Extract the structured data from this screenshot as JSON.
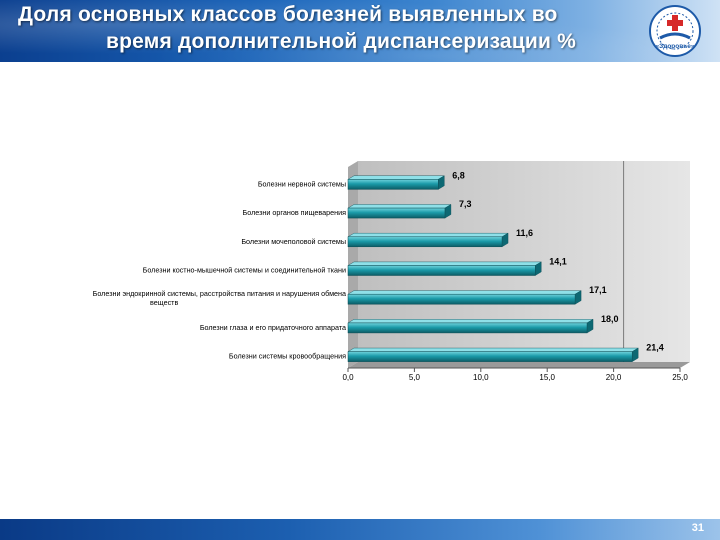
{
  "slide": {
    "title_line1": "Доля основных классов болезней выявленных во",
    "title_line2": "время дополнительной диспансеризации %",
    "page_number": "31",
    "logo_text": "«Здоровье»"
  },
  "chart_data": {
    "type": "bar",
    "orientation": "horizontal",
    "style": "3d",
    "categories": [
      "Болезни нервной системы",
      "Болезни органов пищеварения",
      "Болезни мочеполовой системы",
      "Болезни костно-мышечной системы и соединительной ткани",
      "Болезни эндокринной системы, расстройства питания и нарушения обмена веществ",
      "Болезни глаза и его придаточного аппарата",
      "Болезни системы кровообращения"
    ],
    "values": [
      6.8,
      7.3,
      11.6,
      14.1,
      17.1,
      18.0,
      21.4
    ],
    "value_labels": [
      "6,8",
      "7,3",
      "11,6",
      "14,1",
      "17,1",
      "18,0",
      "21,4"
    ],
    "xlim": [
      0,
      25
    ],
    "xticks": [
      "0,0",
      "5,0",
      "10,0",
      "15,0",
      "20,0",
      "25,0"
    ],
    "grid": "vertical at 20",
    "bar_color": "#1a9aa8",
    "title": "",
    "xlabel": "",
    "ylabel": ""
  }
}
